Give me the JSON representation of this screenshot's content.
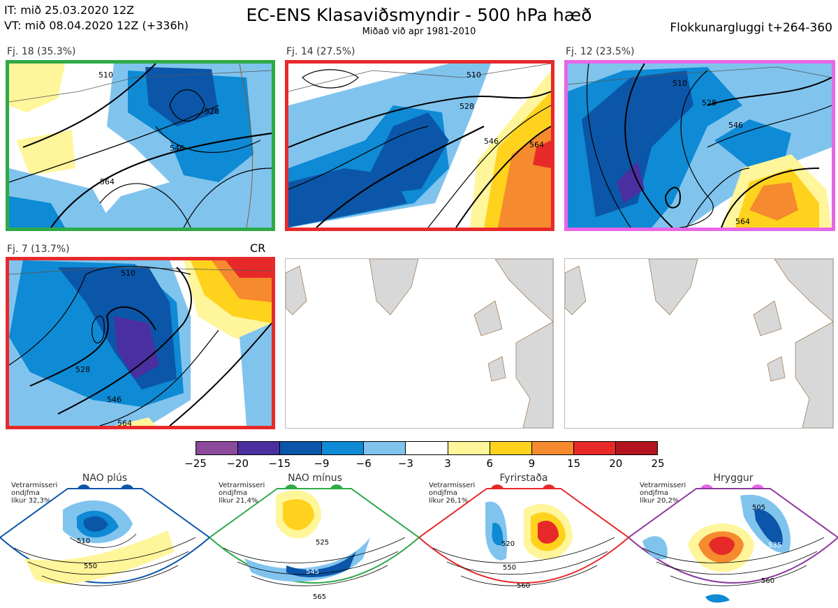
{
  "header": {
    "initial_time": "IT: mið 25.03.2020 12Z",
    "valid_time": "VT: mið 08.04.2020 12Z  (+336h)",
    "title": "EC-ENS Klasaviðsmyndir - 500 hPa hæð",
    "subtitle": "Miðað við apr 1981-2010",
    "window": "Flokkunargluggi t+264-360"
  },
  "clusters": [
    {
      "label": "Fj. 18 (35.3%)",
      "border": "#2eaa46",
      "contours": [
        "510",
        "528",
        "546",
        "564"
      ]
    },
    {
      "label": "Fj. 14 (27.5%)",
      "border": "#e8292a",
      "contours": [
        "510",
        "528",
        "546",
        "564"
      ]
    },
    {
      "label": "Fj. 12 (23.5%)",
      "border": "#e866e8",
      "contours": [
        "510",
        "528",
        "546",
        "564"
      ]
    },
    {
      "label": "Fj. 7 (13.7%)",
      "border": "#e8292a",
      "contours": [
        "510",
        "528",
        "546",
        "564"
      ],
      "tag": "CR"
    }
  ],
  "colorbar": {
    "ticks": [
      "−25",
      "−20",
      "−15",
      "−9",
      "−6",
      "−3",
      "3",
      "6",
      "9",
      "15",
      "20",
      "25"
    ],
    "colors": [
      "#8c4a9c",
      "#4a2fa0",
      "#0b56a8",
      "#0f8ad4",
      "#80c4ee",
      "#ffffff",
      "#fff59a",
      "#ffd21e",
      "#f58a2e",
      "#e8292a",
      "#b4141e"
    ]
  },
  "regimes": [
    {
      "name": "NAO plús",
      "info": [
        "Vetrarmisseri",
        "ondjfma",
        "líkur 32,3%"
      ],
      "color": "#0b56a8",
      "contours": [
        "510",
        "550"
      ]
    },
    {
      "name": "NAO mínus",
      "info": [
        "Vetrarmisseri",
        "ondjfma",
        "líkur 21,4%"
      ],
      "color": "#2eaa46",
      "contours": [
        "525",
        "545",
        "565"
      ]
    },
    {
      "name": "Fyrirstaða",
      "info": [
        "Vetrarmisseri",
        "ondjfma",
        "líkur 26,1%"
      ],
      "color": "#e8292a",
      "contours": [
        "520",
        "550",
        "560"
      ]
    },
    {
      "name": "Hryggur",
      "info": [
        "Vetrarmisseri",
        "ondjfma",
        "líkur 20,2%"
      ],
      "color": "#e866e8",
      "contours": [
        "505",
        "535",
        "560"
      ]
    }
  ]
}
